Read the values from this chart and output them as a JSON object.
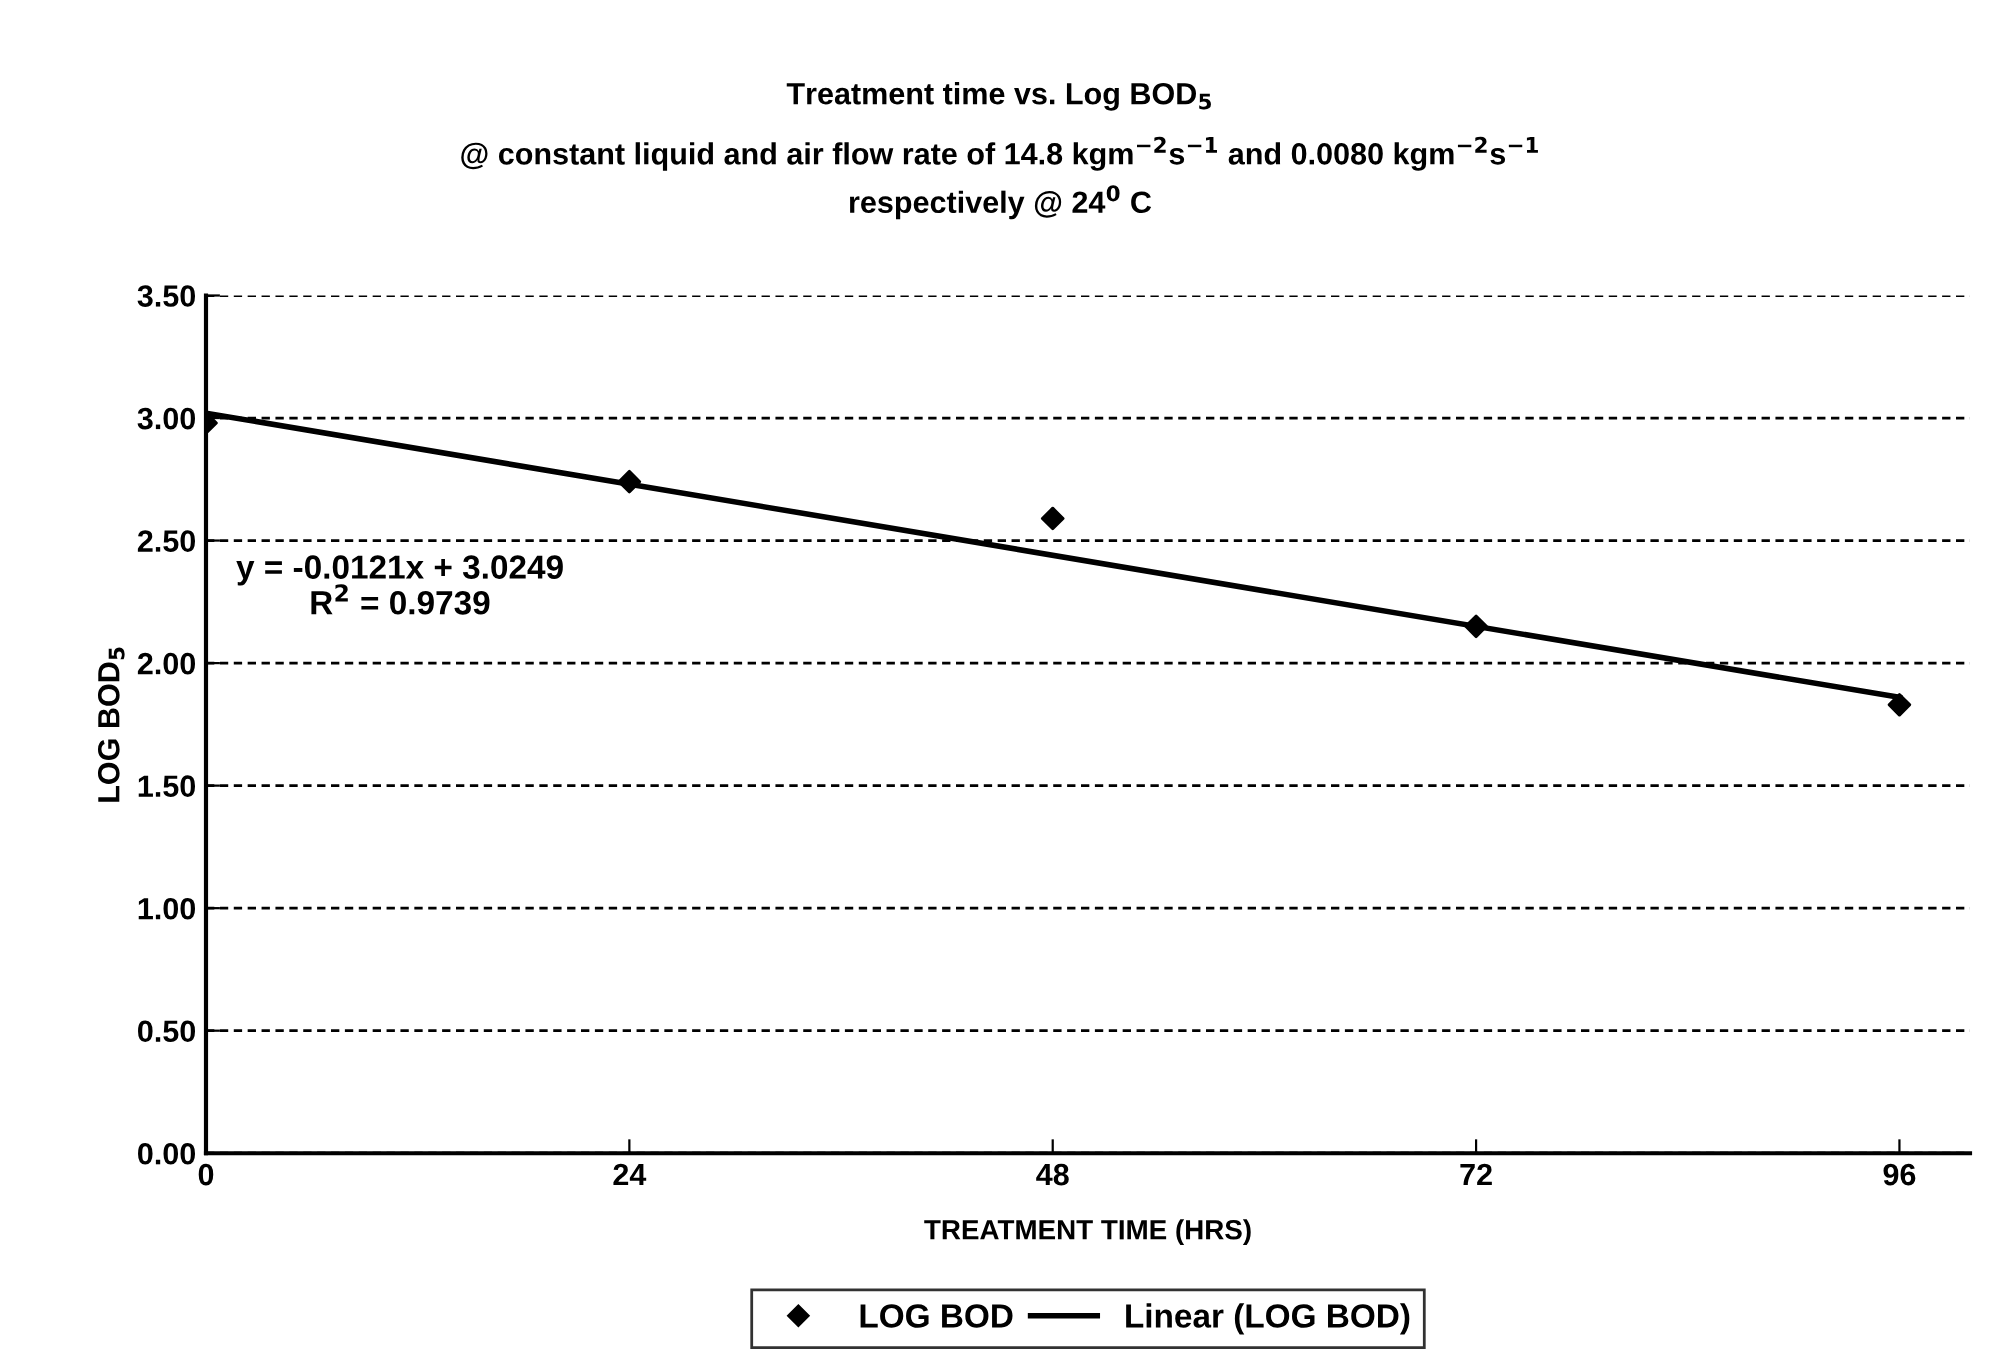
{
  "chart_data": {
    "type": "scatter",
    "title": "Treatment time vs. Log BOD$_{5}$",
    "subtitle": "@ constant liquid and air flow rate of 14.8 kgm$^{−2}$s$^{−1}$ and 0.0080 kgm$^{−2}$s$^{−1}$\nrespectively @ 24$^{0}$ C",
    "xlabel": "TREATMENT TIME (HRS)",
    "ylabel": "LOG BOD$_{5}$",
    "x": [
      0,
      24,
      48,
      72,
      96
    ],
    "series": [
      {
        "name": "LOG BOD",
        "color": "#000000",
        "marker": "diamond",
        "values": [
          2.98,
          2.74,
          2.59,
          2.15,
          1.83
        ]
      },
      {
        "name": "Linear (LOG BOD)",
        "type": "line",
        "color": "#000000",
        "line_style": "solid",
        "marker": "none",
        "x": [
          0,
          96
        ],
        "values": [
          3.02,
          1.86
        ]
      }
    ],
    "annotations": [
      "y = -0.0121x + 3.0249\nR$^{2}$ = 0.9739"
    ],
    "xlim": [
      0,
      100
    ],
    "xticks": [
      0,
      24,
      48,
      72,
      96
    ],
    "ylim": [
      0,
      3.5
    ],
    "yticks": [
      {
        "value": 0,
        "label": "0.00"
      },
      {
        "value": 0.5,
        "label": "0.50"
      },
      {
        "value": 1,
        "label": "1.00"
      },
      {
        "value": 1.5,
        "label": "1.50"
      },
      {
        "value": 2,
        "label": "2.00"
      },
      {
        "value": 2.5,
        "label": "2.50"
      },
      {
        "value": 3,
        "label": "3.00"
      },
      {
        "value": 3.5,
        "label": "3.50"
      }
    ],
    "grid": "y",
    "legend": "bottom"
  }
}
